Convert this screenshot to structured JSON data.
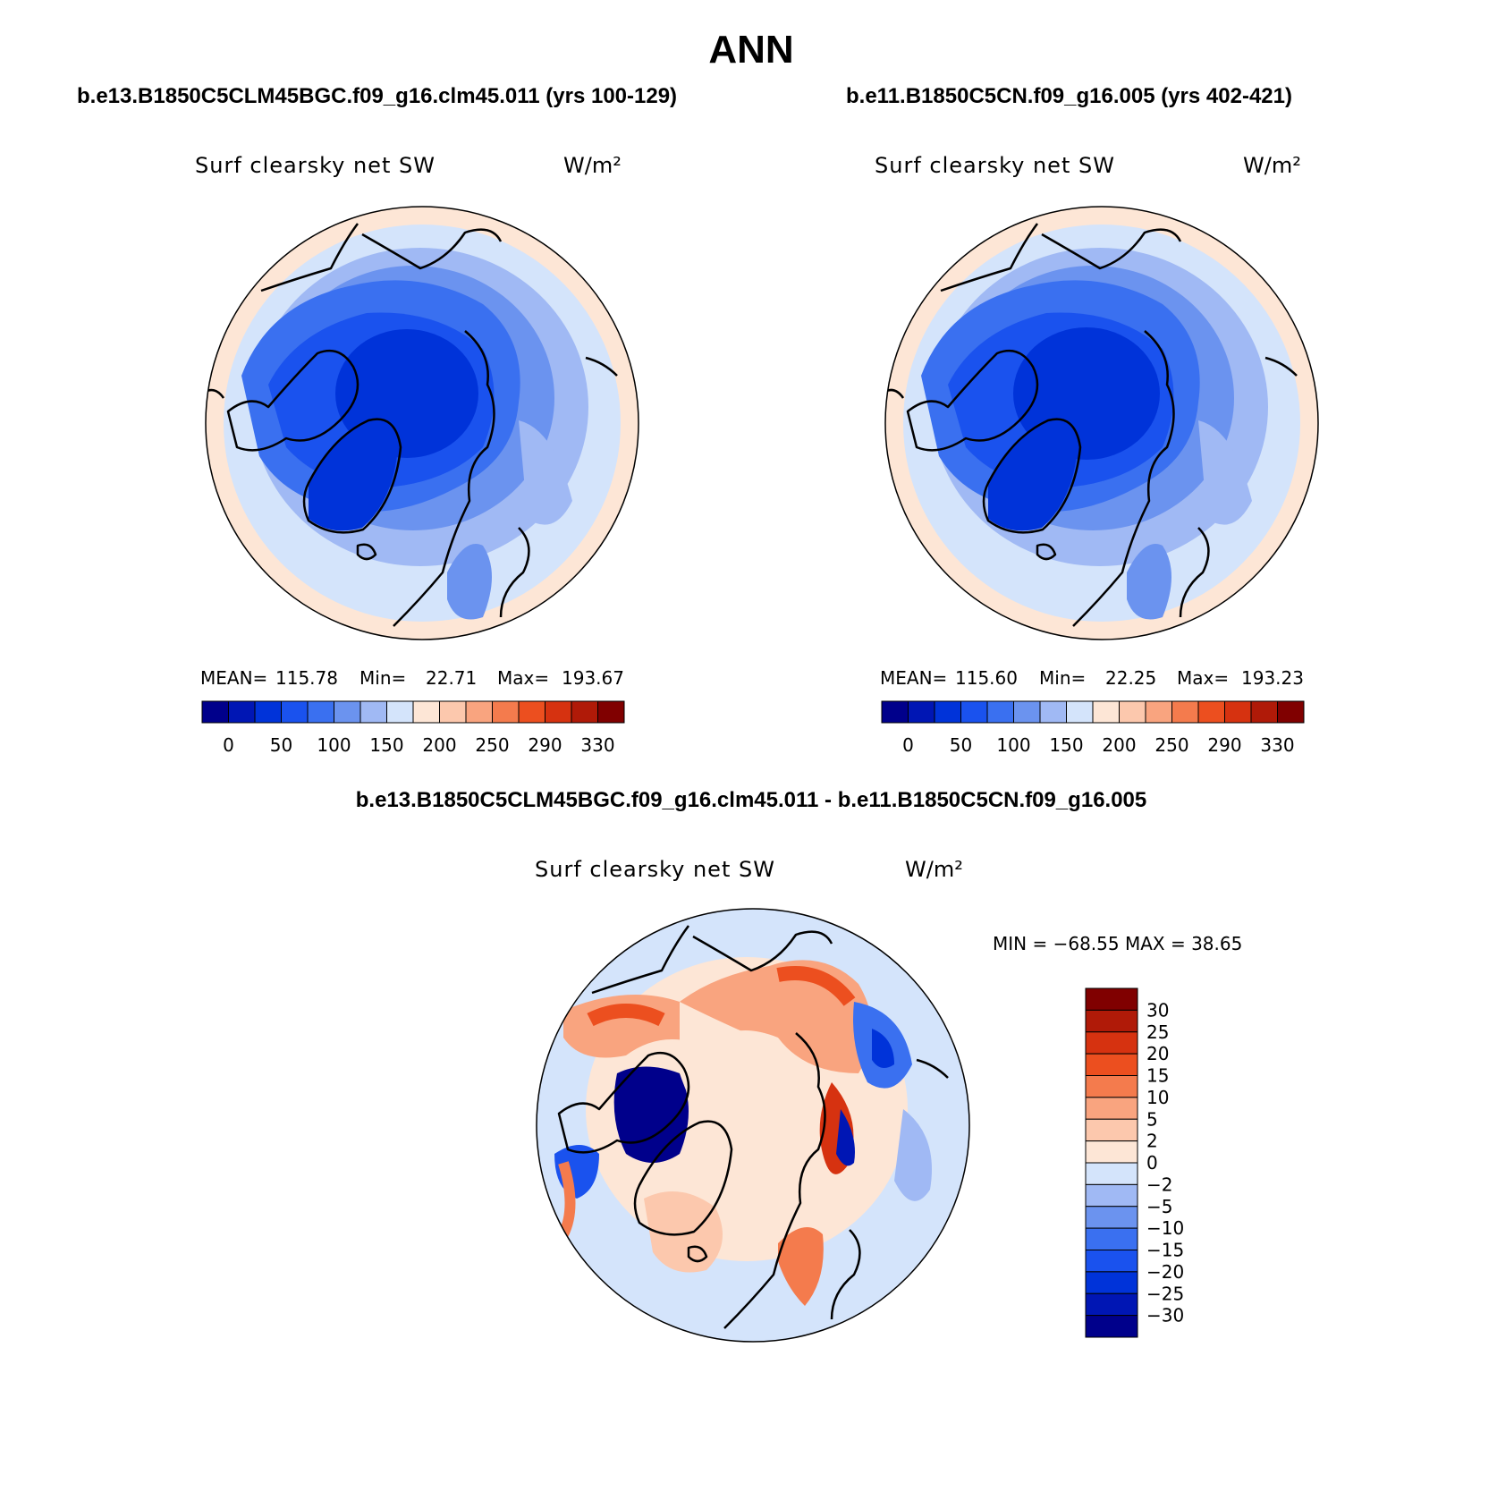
{
  "page": {
    "title": "ANN",
    "diff_title": "b.e13.B1850C5CLM45BGC.f09_g16.clm45.011 - b.e11.B1850C5CN.f09_g16.005"
  },
  "panels": [
    {
      "case_title": "b.e13.B1850C5CLM45BGC.f09_g16.clm45.011 (yrs 100-129)",
      "var_label": "Surf clearsky net SW",
      "units": "W/m²",
      "stats": {
        "mean_label": "MEAN=",
        "mean": "115.78",
        "min_label": "Min=",
        "min": "22.71",
        "max_label": "Max=",
        "max": "193.67"
      }
    },
    {
      "case_title": "b.e11.B1850C5CN.f09_g16.005 (yrs 402-421)",
      "var_label": "Surf clearsky net SW",
      "units": "W/m²",
      "stats": {
        "mean_label": "MEAN=",
        "mean": "115.60",
        "min_label": "Min=",
        "min": "22.25",
        "max_label": "Max=",
        "max": "193.23"
      }
    }
  ],
  "diff_panel": {
    "var_label": "Surf clearsky net SW",
    "units": "W/m²",
    "minmax_text": "MIN = −68.55 MAX =  38.65",
    "min": -68.55,
    "max": 38.65
  },
  "colorbars": {
    "abs": {
      "colors": [
        "#00008b",
        "#0016b4",
        "#0033d9",
        "#1a52ee",
        "#3a70f0",
        "#6b93ef",
        "#a0b9f4",
        "#d4e4fb",
        "#fde6d6",
        "#fcc8ad",
        "#f9a47f",
        "#f47b4d",
        "#ec4f1f",
        "#d63210",
        "#b01a08",
        "#800000"
      ],
      "tick_labels": [
        "0",
        "50",
        "100",
        "150",
        "200",
        "250",
        "290",
        "330"
      ]
    },
    "diff": {
      "colors": [
        "#800000",
        "#b01a08",
        "#d63210",
        "#ec4f1f",
        "#f47b4d",
        "#f9a47f",
        "#fcc8ad",
        "#fde6d6",
        "#d4e4fb",
        "#a0b9f4",
        "#6b93ef",
        "#3a70f0",
        "#1a52ee",
        "#0033d9",
        "#0016b4",
        "#00008b"
      ],
      "tick_labels": [
        "30",
        "25",
        "20",
        "15",
        "10",
        "5",
        "2",
        "0",
        "−2",
        "−5",
        "−10",
        "−15",
        "−20",
        "−25",
        "−30"
      ]
    }
  }
}
